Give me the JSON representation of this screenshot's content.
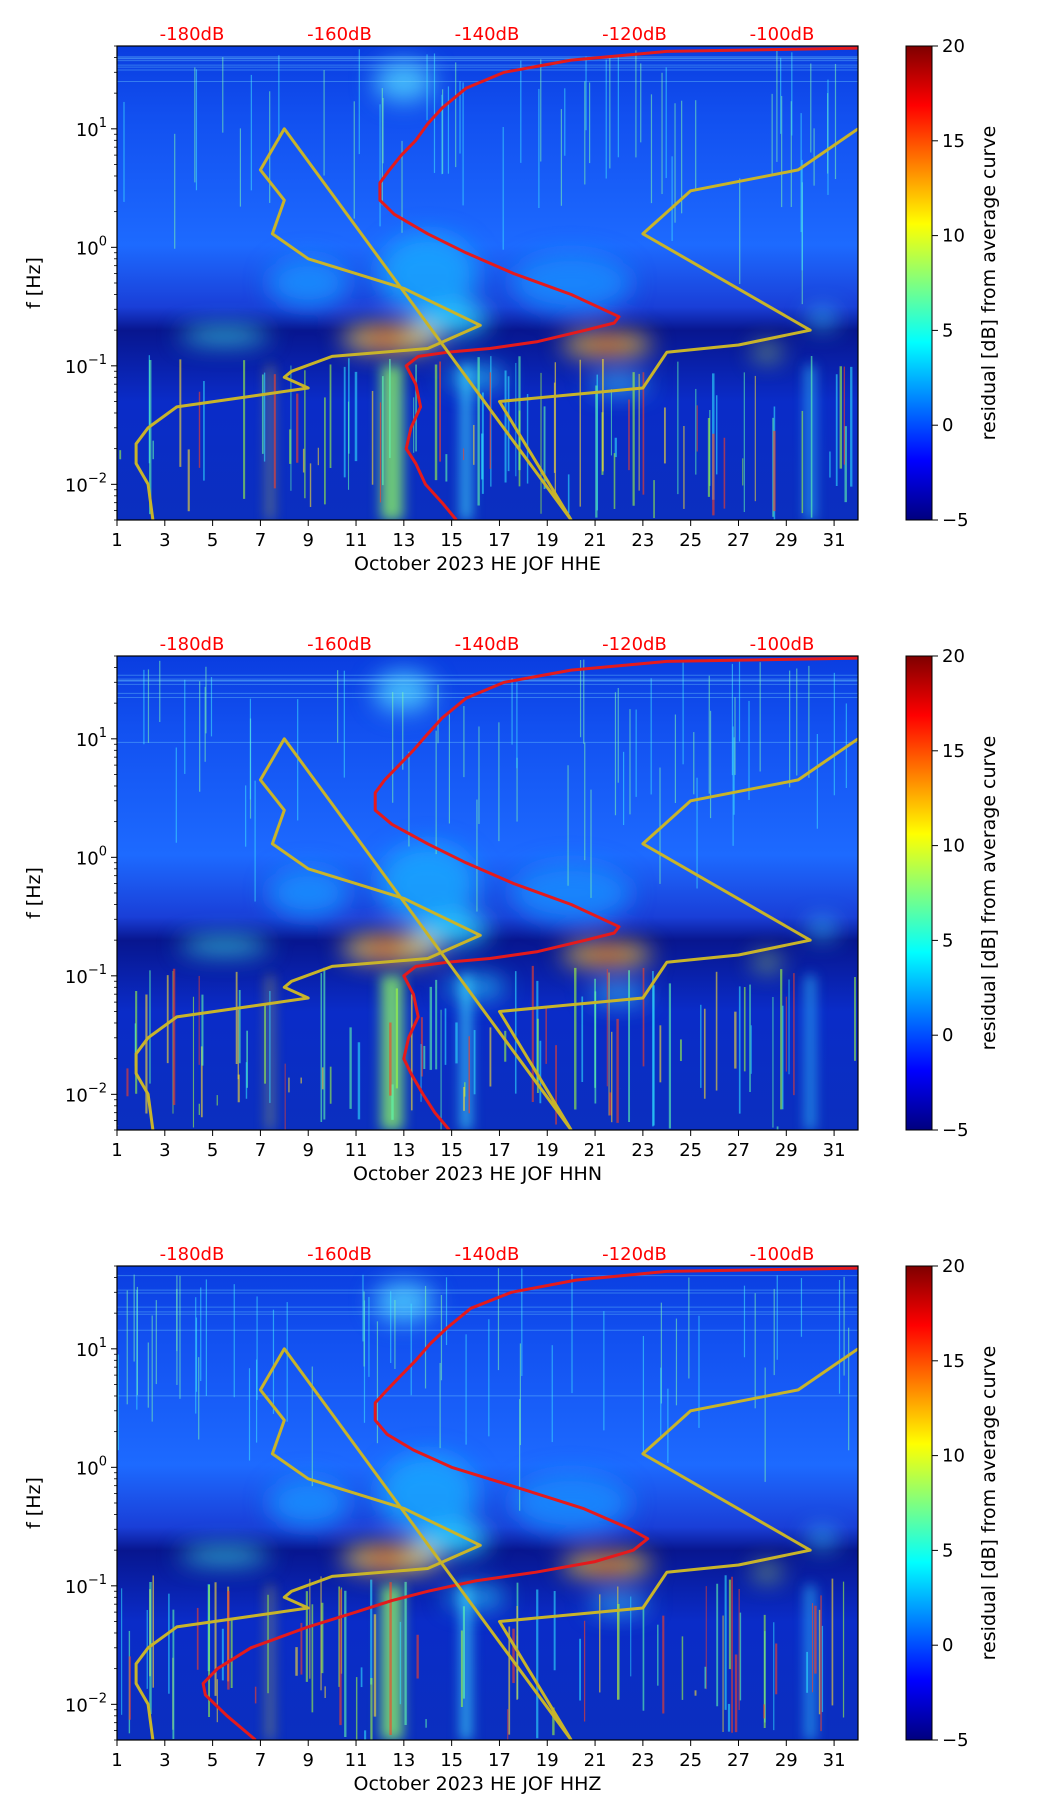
{
  "colors": {
    "curve_red": "#e41a1c",
    "curve_gold": "#c8b42a",
    "top_label_color": "#ff0000",
    "colormap": "jet"
  },
  "chart_data": [
    {
      "type": "heatmap",
      "title": "",
      "xlabel": "October 2023 HE JOF  HHE",
      "ylabel": "f [Hz]",
      "y_scale": "log",
      "xlim": [
        1,
        32
      ],
      "ylim": [
        0.005,
        50
      ],
      "x_ticks": [
        "1",
        "3",
        "5",
        "7",
        "9",
        "11",
        "13",
        "15",
        "17",
        "19",
        "21",
        "23",
        "25",
        "27",
        "29",
        "31"
      ],
      "y_ticks": [
        "10^-2",
        "10^-1",
        "10^0",
        "10^1"
      ],
      "top_labels": [
        "-180dB",
        "-160dB",
        "-140dB",
        "-120dB",
        "-100dB"
      ],
      "colorbar": {
        "label": "residual [dB] from average curve",
        "range": [
          -5,
          20
        ],
        "ticks": [
          "−5",
          "0",
          "5",
          "10",
          "15",
          "20"
        ]
      },
      "series": [
        {
          "color": "red",
          "x": [
            15.2,
            14.6,
            13.9,
            13.5,
            13.1,
            13.3,
            13.7,
            13.5,
            13.1,
            13.6,
            14.8,
            16.6,
            18.6,
            20.6,
            21.8,
            22.0,
            20.0,
            17.6,
            15.6,
            14.0,
            12.6,
            12.0,
            12.0,
            12.4,
            12.9,
            13.5,
            14.0,
            14.6,
            15.6,
            17.2,
            20.0,
            24.0,
            32.0
          ],
          "y": [
            0.005,
            0.007,
            0.01,
            0.015,
            0.02,
            0.03,
            0.045,
            0.07,
            0.1,
            0.12,
            0.13,
            0.14,
            0.16,
            0.2,
            0.23,
            0.26,
            0.4,
            0.6,
            0.9,
            1.3,
            1.9,
            2.5,
            3.5,
            4.5,
            6,
            8,
            11,
            15,
            22,
            30,
            38,
            45,
            48
          ]
        },
        {
          "color": "gold",
          "x": [
            2.5,
            2.3,
            1.8,
            1.8,
            2.3,
            3.5,
            6.5,
            9.0,
            8.0,
            8.3,
            10.0,
            14.0,
            16.2,
            13.0,
            9.0,
            7.5,
            8.0,
            7.0,
            8.0,
            20.0,
            17.0,
            23.0,
            24.0,
            27.0,
            30.0,
            23.0,
            25.0,
            29.5,
            32.0
          ],
          "y": [
            0.005,
            0.01,
            0.015,
            0.022,
            0.03,
            0.045,
            0.055,
            0.065,
            0.08,
            0.09,
            0.12,
            0.14,
            0.22,
            0.45,
            0.8,
            1.3,
            2.5,
            4.5,
            10,
            0.005,
            0.05,
            0.065,
            0.13,
            0.15,
            0.2,
            1.3,
            3.0,
            4.5,
            10
          ]
        }
      ]
    },
    {
      "type": "heatmap",
      "title": "",
      "xlabel": "October 2023 HE JOF  HHN",
      "ylabel": "f [Hz]",
      "y_scale": "log",
      "xlim": [
        1,
        32
      ],
      "ylim": [
        0.005,
        50
      ],
      "x_ticks": [
        "1",
        "3",
        "5",
        "7",
        "9",
        "11",
        "13",
        "15",
        "17",
        "19",
        "21",
        "23",
        "25",
        "27",
        "29",
        "31"
      ],
      "y_ticks": [
        "10^-2",
        "10^-1",
        "10^0",
        "10^1"
      ],
      "top_labels": [
        "-180dB",
        "-160dB",
        "-140dB",
        "-120dB",
        "-100dB"
      ],
      "colorbar": {
        "label": "residual [dB] from average curve",
        "range": [
          -5,
          20
        ],
        "ticks": [
          "−5",
          "0",
          "5",
          "10",
          "15",
          "20"
        ]
      },
      "series": [
        {
          "color": "red",
          "x": [
            14.9,
            14.3,
            13.8,
            13.3,
            13.0,
            13.2,
            13.6,
            13.4,
            13.0,
            13.5,
            14.8,
            16.6,
            18.6,
            20.6,
            21.8,
            22.0,
            20.0,
            17.6,
            15.6,
            14.0,
            12.5,
            11.8,
            11.8,
            12.2,
            12.8,
            13.4,
            14.0,
            14.6,
            15.6,
            17.2,
            20.0,
            24.0,
            32.0
          ],
          "y": [
            0.005,
            0.007,
            0.01,
            0.015,
            0.02,
            0.03,
            0.045,
            0.07,
            0.1,
            0.12,
            0.13,
            0.14,
            0.16,
            0.2,
            0.23,
            0.26,
            0.4,
            0.6,
            0.9,
            1.3,
            1.9,
            2.5,
            3.5,
            4.5,
            6,
            8,
            11,
            15,
            22,
            30,
            38,
            45,
            48
          ]
        },
        {
          "color": "gold",
          "x": [
            2.5,
            2.3,
            1.8,
            1.8,
            2.3,
            3.5,
            6.5,
            9.0,
            8.0,
            8.3,
            10.0,
            14.0,
            16.2,
            13.0,
            9.0,
            7.5,
            8.0,
            7.0,
            8.0,
            20.0,
            17.0,
            23.0,
            24.0,
            27.0,
            30.0,
            23.0,
            25.0,
            29.5,
            32.0
          ],
          "y": [
            0.005,
            0.01,
            0.015,
            0.022,
            0.03,
            0.045,
            0.055,
            0.065,
            0.08,
            0.09,
            0.12,
            0.14,
            0.22,
            0.45,
            0.8,
            1.3,
            2.5,
            4.5,
            10,
            0.005,
            0.05,
            0.065,
            0.13,
            0.15,
            0.2,
            1.3,
            3.0,
            4.5,
            10
          ]
        }
      ]
    },
    {
      "type": "heatmap",
      "title": "",
      "xlabel": "October 2023 HE JOF  HHZ",
      "ylabel": "f [Hz]",
      "y_scale": "log",
      "xlim": [
        1,
        32
      ],
      "ylim": [
        0.005,
        50
      ],
      "x_ticks": [
        "1",
        "3",
        "5",
        "7",
        "9",
        "11",
        "13",
        "15",
        "17",
        "19",
        "21",
        "23",
        "25",
        "27",
        "29",
        "31"
      ],
      "y_ticks": [
        "10^-2",
        "10^-1",
        "10^0",
        "10^1"
      ],
      "top_labels": [
        "-180dB",
        "-160dB",
        "-140dB",
        "-120dB",
        "-100dB"
      ],
      "colorbar": {
        "label": "residual [dB] from average curve",
        "range": [
          -5,
          20
        ],
        "ticks": [
          "−5",
          "0",
          "5",
          "10",
          "15",
          "20"
        ]
      },
      "series": [
        {
          "color": "red",
          "x": [
            6.8,
            5.6,
            4.7,
            4.6,
            5.2,
            6.6,
            9.0,
            11.0,
            12.5,
            14.0,
            16.0,
            18.5,
            21.0,
            22.6,
            23.2,
            22.5,
            20.5,
            17.5,
            15.0,
            13.4,
            12.3,
            11.8,
            11.8,
            12.3,
            12.9,
            13.5,
            14.1,
            14.8,
            15.8,
            17.5,
            20.2,
            24.0,
            32.0
          ],
          "y": [
            0.005,
            0.008,
            0.012,
            0.015,
            0.02,
            0.03,
            0.045,
            0.06,
            0.075,
            0.09,
            0.11,
            0.13,
            0.16,
            0.2,
            0.25,
            0.3,
            0.45,
            0.7,
            1.0,
            1.4,
            1.9,
            2.5,
            3.5,
            4.5,
            6,
            8,
            11,
            15,
            22,
            30,
            38,
            45,
            48
          ]
        },
        {
          "color": "gold",
          "x": [
            2.5,
            2.3,
            1.8,
            1.8,
            2.3,
            3.5,
            6.5,
            9.0,
            8.0,
            8.3,
            10.0,
            14.0,
            16.2,
            13.0,
            9.0,
            7.5,
            8.0,
            7.0,
            8.0,
            20.0,
            17.0,
            23.0,
            24.0,
            27.0,
            30.0,
            23.0,
            25.0,
            29.5,
            32.0
          ],
          "y": [
            0.005,
            0.01,
            0.015,
            0.022,
            0.03,
            0.045,
            0.055,
            0.065,
            0.08,
            0.09,
            0.12,
            0.14,
            0.22,
            0.45,
            0.8,
            1.3,
            2.5,
            4.5,
            10,
            0.005,
            0.05,
            0.065,
            0.13,
            0.15,
            0.2,
            1.3,
            3.0,
            4.5,
            10
          ]
        }
      ]
    }
  ]
}
